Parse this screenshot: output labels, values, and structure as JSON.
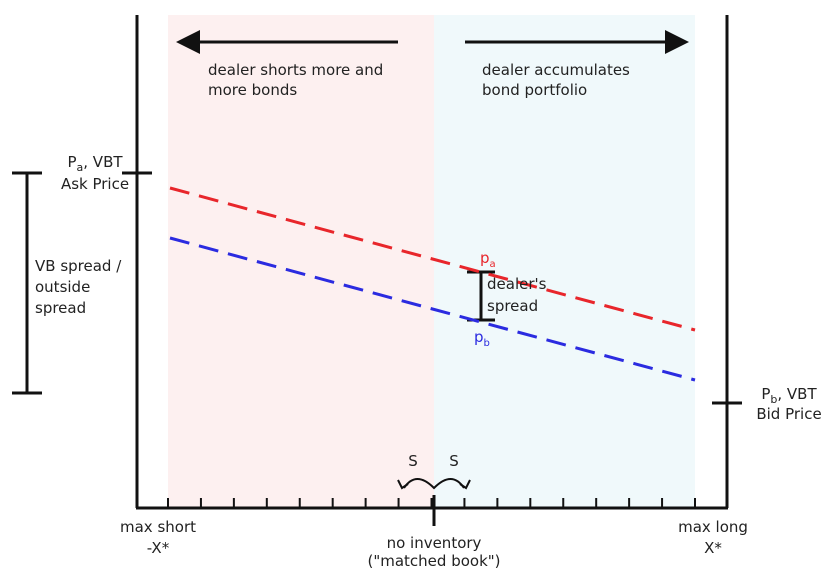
{
  "left_arrow_text": [
    "dealer shorts more and",
    "more bonds"
  ],
  "right_arrow_text": [
    "dealer accumulates",
    "bond portfolio"
  ],
  "ask_label": {
    "symbol": "P",
    "subscript": "a",
    "suffix": ", VBT",
    "line2": "Ask Price"
  },
  "bid_label": {
    "symbol": "P",
    "subscript": "b",
    "suffix": ", VBT",
    "line2": "Bid Price"
  },
  "outside_spread": [
    "VB spread /",
    "outside",
    "spread"
  ],
  "pa_label": {
    "symbol": "p",
    "subscript": "a"
  },
  "pb_label": {
    "symbol": "p",
    "subscript": "b"
  },
  "dealer_spread": [
    "dealer's",
    "spread"
  ],
  "s_labels": [
    "S",
    "S"
  ],
  "max_short": [
    "max short",
    "-X*"
  ],
  "no_inventory": [
    "no inventory",
    "(\"matched book\")"
  ],
  "max_long": [
    "max long",
    "X*"
  ]
}
